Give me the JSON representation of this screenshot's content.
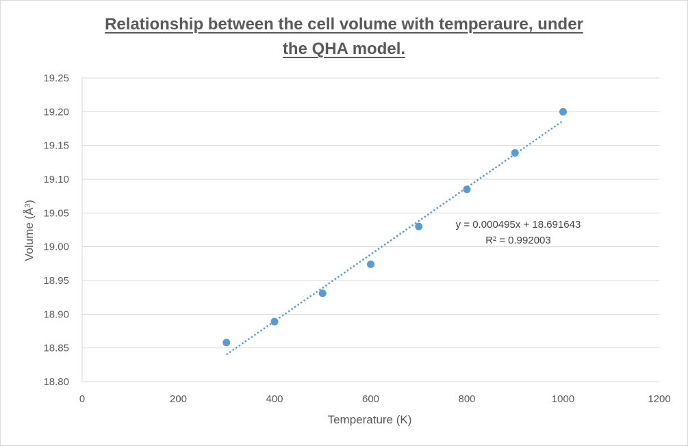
{
  "chart_data": {
    "type": "scatter",
    "title_line1": "Relationship between the cell volume with temperaure, under",
    "title_line2": "the QHA model.",
    "xlabel": "Temperature (K)",
    "ylabel": "Volume (Å³)",
    "xlim": [
      0,
      1200
    ],
    "ylim": [
      18.8,
      19.25
    ],
    "x_ticks": [
      0,
      200,
      400,
      600,
      800,
      1000,
      1200
    ],
    "y_ticks": [
      18.8,
      18.85,
      18.9,
      18.95,
      19.0,
      19.05,
      19.1,
      19.15,
      19.2,
      19.25
    ],
    "x_tick_labels": [
      "0",
      "200",
      "400",
      "600",
      "800",
      "1000",
      "1200"
    ],
    "y_tick_labels": [
      "18.80",
      "18.85",
      "18.90",
      "18.95",
      "19.00",
      "19.05",
      "19.10",
      "19.15",
      "19.20",
      "19.25"
    ],
    "grid": true,
    "series": [
      {
        "name": "Volume",
        "x": [
          300,
          400,
          500,
          600,
          700,
          800,
          900,
          1000
        ],
        "y": [
          18.858,
          18.889,
          18.931,
          18.974,
          19.03,
          19.085,
          19.139,
          19.2
        ],
        "color": "#5b9bd5"
      }
    ],
    "trendline": {
      "type": "linear",
      "slope": 0.000495,
      "intercept": 18.691643,
      "x_range": [
        300,
        1000
      ],
      "color": "#5b9bd5",
      "equation": "y = 0.000495x + 18.691643",
      "r_squared": "R² = 0.992003"
    }
  }
}
